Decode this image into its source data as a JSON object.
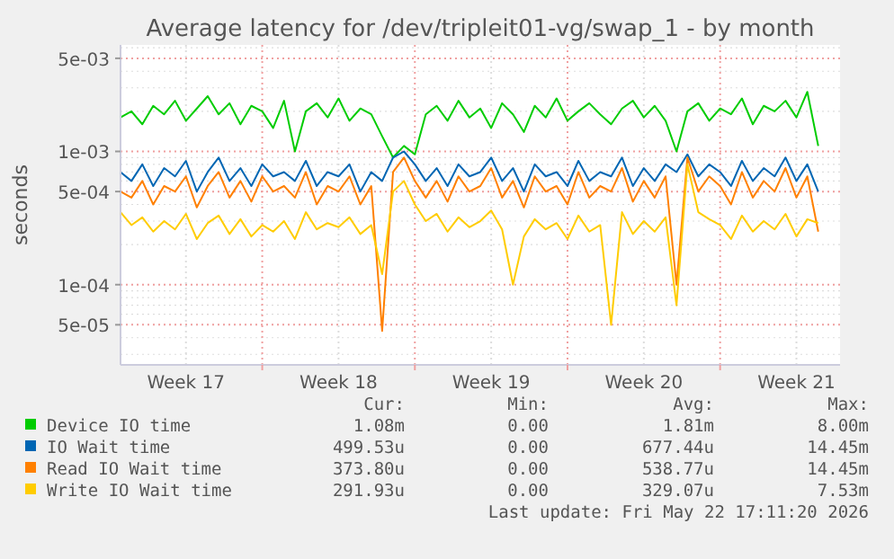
{
  "chart_data": {
    "type": "line",
    "title": "Average latency for /dev/tripleit01-vg/swap_1 - by month",
    "ylabel": "seconds",
    "log": "y",
    "grid": true,
    "legend": "bottom",
    "marker": "none",
    "line_style": "solid",
    "xlim": [
      "2026-04-20T12:00",
      "2026-05-23T12:00"
    ],
    "xticks": [
      {
        "value": "2026-04-23T12:00",
        "label": "Week 17"
      },
      {
        "value": "2026-04-27T00:00",
        "label": null
      },
      {
        "value": "2026-04-30T12:00",
        "label": "Week 18"
      },
      {
        "value": "2026-05-04T00:00",
        "label": null
      },
      {
        "value": "2026-05-07T12:00",
        "label": "Week 19"
      },
      {
        "value": "2026-05-11T00:00",
        "label": null
      },
      {
        "value": "2026-05-14T12:00",
        "label": "Week 20"
      },
      {
        "value": "2026-05-18T00:00",
        "label": null
      },
      {
        "value": "2026-05-21T12:00",
        "label": "Week 21"
      }
    ],
    "ylim": [
      2.5e-05,
      0.0063
    ],
    "yticks": [
      {
        "value": 5e-05,
        "label": "5e-05"
      },
      {
        "value": 0.0001,
        "label": "1e-04"
      },
      {
        "value": 0.0005,
        "label": "5e-04"
      },
      {
        "value": 0.001,
        "label": "1e-03"
      },
      {
        "value": 0.005,
        "label": "5e-03"
      }
    ],
    "x": [
      "2026-04-20T12:00",
      "2026-04-21T00:00",
      "2026-04-21T12:00",
      "2026-04-22T00:00",
      "2026-04-22T12:00",
      "2026-04-23T00:00",
      "2026-04-23T12:00",
      "2026-04-24T00:00",
      "2026-04-24T12:00",
      "2026-04-25T00:00",
      "2026-04-25T12:00",
      "2026-04-26T00:00",
      "2026-04-26T12:00",
      "2026-04-27T00:00",
      "2026-04-27T12:00",
      "2026-04-28T00:00",
      "2026-04-28T12:00",
      "2026-04-29T00:00",
      "2026-04-29T12:00",
      "2026-04-30T00:00",
      "2026-04-30T12:00",
      "2026-05-01T00:00",
      "2026-05-01T12:00",
      "2026-05-02T00:00",
      "2026-05-02T12:00",
      "2026-05-03T00:00",
      "2026-05-03T12:00",
      "2026-05-04T00:00",
      "2026-05-04T12:00",
      "2026-05-05T00:00",
      "2026-05-05T12:00",
      "2026-05-06T00:00",
      "2026-05-06T12:00",
      "2026-05-07T00:00",
      "2026-05-07T12:00",
      "2026-05-08T00:00",
      "2026-05-08T12:00",
      "2026-05-09T00:00",
      "2026-05-09T12:00",
      "2026-05-10T00:00",
      "2026-05-10T12:00",
      "2026-05-11T00:00",
      "2026-05-11T12:00",
      "2026-05-12T00:00",
      "2026-05-12T12:00",
      "2026-05-13T00:00",
      "2026-05-13T12:00",
      "2026-05-14T00:00",
      "2026-05-14T12:00",
      "2026-05-15T00:00",
      "2026-05-15T12:00",
      "2026-05-16T00:00",
      "2026-05-16T12:00",
      "2026-05-17T00:00",
      "2026-05-17T12:00",
      "2026-05-18T00:00",
      "2026-05-18T12:00",
      "2026-05-19T00:00",
      "2026-05-19T12:00",
      "2026-05-20T00:00",
      "2026-05-20T12:00",
      "2026-05-21T00:00",
      "2026-05-21T12:00",
      "2026-05-22T00:00",
      "2026-05-22T12:00"
    ],
    "series": [
      {
        "name": "Device IO time",
        "color": "#00cc00",
        "values": [
          0.0018,
          0.002,
          0.0016,
          0.0022,
          0.0019,
          0.0024,
          0.0017,
          0.0021,
          0.0026,
          0.0019,
          0.0023,
          0.0016,
          0.0022,
          0.002,
          0.0015,
          0.0024,
          0.001,
          0.002,
          0.0023,
          0.0018,
          0.0025,
          0.0017,
          0.0021,
          0.0019,
          0.0013,
          0.0009,
          0.0011,
          0.00095,
          0.0019,
          0.0022,
          0.0017,
          0.0024,
          0.0018,
          0.0021,
          0.0015,
          0.0023,
          0.0019,
          0.0014,
          0.0022,
          0.0018,
          0.0025,
          0.0017,
          0.002,
          0.0023,
          0.0019,
          0.0016,
          0.0021,
          0.0024,
          0.0018,
          0.0022,
          0.0017,
          0.001,
          0.002,
          0.0023,
          0.0017,
          0.0021,
          0.0019,
          0.0025,
          0.0016,
          0.0022,
          0.002,
          0.0024,
          0.0018,
          0.0028,
          0.0011
        ]
      },
      {
        "name": "IO Wait time",
        "color": "#0066b3",
        "values": [
          0.0007,
          0.0006,
          0.0008,
          0.00055,
          0.00075,
          0.00065,
          0.00085,
          0.0005,
          0.0007,
          0.0009,
          0.0006,
          0.00075,
          0.00055,
          0.0008,
          0.00065,
          0.0007,
          0.0006,
          0.00085,
          0.00055,
          0.0007,
          0.00065,
          0.0008,
          0.0005,
          0.0007,
          0.0006,
          0.0009,
          0.001,
          0.0008,
          0.0006,
          0.00075,
          0.00055,
          0.0008,
          0.00065,
          0.0007,
          0.0009,
          0.0006,
          0.00075,
          0.0005,
          0.0008,
          0.00065,
          0.0007,
          0.00055,
          0.00085,
          0.0006,
          0.0007,
          0.00065,
          0.0009,
          0.00055,
          0.00075,
          0.0006,
          0.0008,
          0.0007,
          0.00095,
          0.00065,
          0.0008,
          0.0007,
          0.00055,
          0.00085,
          0.0006,
          0.00075,
          0.00065,
          0.0009,
          0.0006,
          0.0008,
          0.0005
        ]
      },
      {
        "name": "Read IO Wait time",
        "color": "#ff8000",
        "values": [
          0.0005,
          0.00045,
          0.0006,
          0.0004,
          0.00055,
          0.0005,
          0.00065,
          0.00038,
          0.00055,
          0.0007,
          0.00045,
          0.0006,
          0.00042,
          0.00065,
          0.0005,
          0.00055,
          0.00045,
          0.0007,
          0.0004,
          0.00055,
          0.0005,
          0.00065,
          0.0004,
          0.00055,
          4.5e-05,
          0.0007,
          0.0009,
          0.0006,
          0.00045,
          0.0006,
          0.00042,
          0.00065,
          0.0005,
          0.00055,
          0.00075,
          0.00045,
          0.0006,
          0.00038,
          0.00065,
          0.0005,
          0.00055,
          0.0004,
          0.0007,
          0.00045,
          0.00055,
          0.0005,
          0.00075,
          0.00042,
          0.0006,
          0.00045,
          0.00065,
          0.0001,
          0.0009,
          0.0005,
          0.00065,
          0.00055,
          0.0004,
          0.0007,
          0.00045,
          0.0006,
          0.0005,
          0.00075,
          0.00045,
          0.00065,
          0.00025
        ]
      },
      {
        "name": "Write IO Wait time",
        "color": "#ffcc00",
        "values": [
          0.00035,
          0.00028,
          0.00032,
          0.00025,
          0.0003,
          0.00026,
          0.00034,
          0.00022,
          0.00029,
          0.00033,
          0.00024,
          0.00031,
          0.00023,
          0.00028,
          0.00025,
          0.0003,
          0.00022,
          0.00035,
          0.00026,
          0.00029,
          0.00027,
          0.00032,
          0.00024,
          0.00028,
          0.00012,
          0.0005,
          0.0006,
          0.0004,
          0.0003,
          0.00034,
          0.00025,
          0.00032,
          0.00027,
          0.0003,
          0.00036,
          0.00026,
          0.0001,
          0.00023,
          0.00031,
          0.00026,
          0.00029,
          0.00022,
          0.00033,
          0.00025,
          0.00028,
          5e-05,
          0.00035,
          0.00024,
          0.0003,
          0.00025,
          0.00032,
          7e-05,
          0.0008,
          0.00035,
          0.00031,
          0.00028,
          0.00022,
          0.00033,
          0.00025,
          0.0003,
          0.00026,
          0.00034,
          0.00023,
          0.00031,
          0.00029
        ]
      }
    ],
    "annotations": [
      "Cur:",
      "Min:",
      "Avg:",
      "Max:",
      "1.08m",
      "0.00",
      "1.81m",
      "8.00m",
      "499.53u",
      "0.00",
      "677.44u",
      "14.45m",
      "373.80u",
      "0.00",
      "538.77u",
      "14.45m",
      "291.93u",
      "0.00",
      "329.07u",
      "7.53m",
      "Last update: Fri May 22 17:11:20 2026"
    ]
  }
}
